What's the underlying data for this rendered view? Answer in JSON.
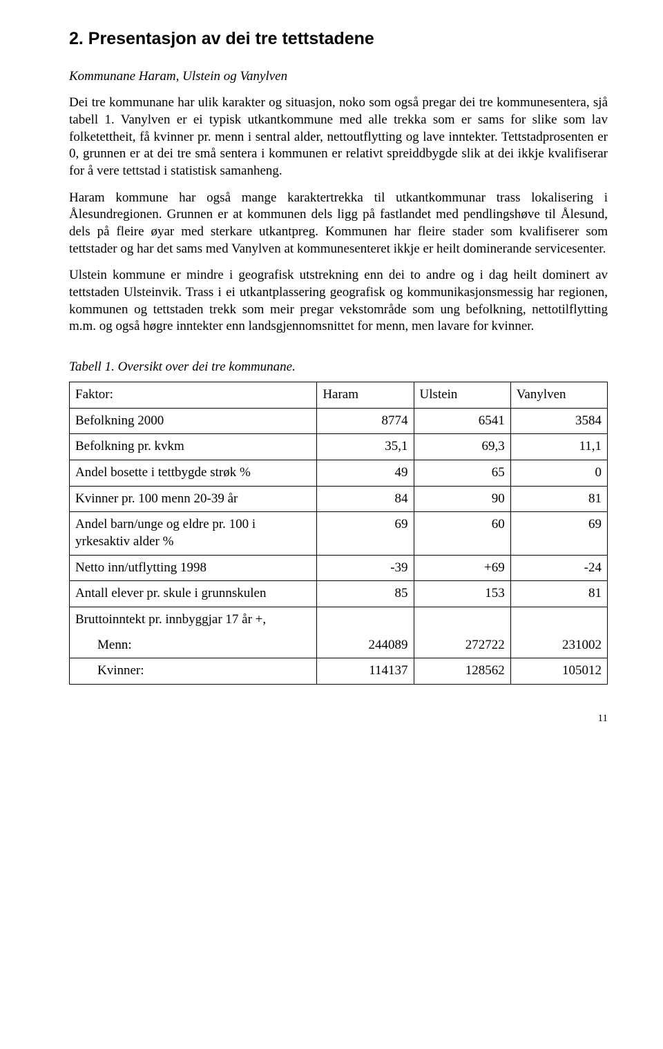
{
  "heading": "2. Presentasjon av dei tre tettstadene",
  "subtitle": "Kommunane Haram, Ulstein og Vanylven",
  "paragraphs": {
    "p1": "Dei tre kommunane har ulik karakter og situasjon, noko som også pregar dei tre kommunesentera, sjå tabell 1. Vanylven er ei typisk utkantkommune med alle trekka som er sams for slike som lav folketettheit, få kvinner pr. menn i sentral alder, nettoutflytting og lave inntekter. Tettstadprosenten er 0, grunnen er at dei tre små sentera i kommunen er relativt spreiddbygde slik at dei ikkje kvalifiserar for å vere tettstad i statistisk samanheng.",
    "p2": "Haram kommune har også mange karaktertrekka til utkantkommunar trass lokalisering i Ålesundregionen. Grunnen er at kommunen dels ligg på fastlandet med pendlingshøve til Ålesund, dels på fleire øyar med sterkare utkantpreg. Kommunen har fleire stader som kvalifiserer som tettstader og har det sams med Vanylven at kommunesenteret ikkje er heilt dominerande servicesenter.",
    "p3": "Ulstein kommune er mindre i geografisk utstrekning enn dei to andre og i dag heilt dominert av tettstaden Ulsteinvik. Trass i ei utkantplassering geografisk og kommunikasjonsmessig har regionen, kommunen og tettstaden trekk som meir pregar vekstområde som ung befolkning, nettotilflytting m.m. og også høgre inntekter enn landsgjennomsnittet for menn, men lavare for kvinner."
  },
  "table_caption": "Tabell 1. Oversikt over dei tre kommunane.",
  "table": {
    "columns": [
      "Faktor:",
      "Haram",
      "Ulstein",
      "Vanylven"
    ],
    "rows": [
      {
        "label": "Befolkning 2000",
        "vals": [
          "8774",
          "6541",
          "3584"
        ]
      },
      {
        "label": "Befolkning pr. kvkm",
        "vals": [
          "35,1",
          "69,3",
          "11,1"
        ]
      },
      {
        "label": "Andel bosette i tettbygde strøk %",
        "vals": [
          "49",
          "65",
          "0"
        ]
      },
      {
        "label": "Kvinner pr. 100 menn 20-39 år",
        "vals": [
          "84",
          "90",
          "81"
        ]
      },
      {
        "label": "Andel barn/unge og eldre pr. 100 i yrkesaktiv alder %",
        "vals": [
          "69",
          "60",
          "69"
        ]
      },
      {
        "label": "Netto inn/utflytting 1998",
        "vals": [
          "-39",
          "+69",
          "-24"
        ]
      },
      {
        "label": "Antall elever pr. skule i grunnskulen",
        "vals": [
          "85",
          "153",
          "81"
        ]
      }
    ],
    "brutto_label": "Bruttoinntekt pr. innbyggjar 17 år +,",
    "brutto_menn_label": "Menn:",
    "brutto_menn_vals": [
      "244089",
      "272722",
      "231002"
    ],
    "brutto_kvinner_label": "Kvinner:",
    "brutto_kvinner_vals": [
      "114137",
      "128562",
      "105012"
    ]
  },
  "page_number": "11"
}
